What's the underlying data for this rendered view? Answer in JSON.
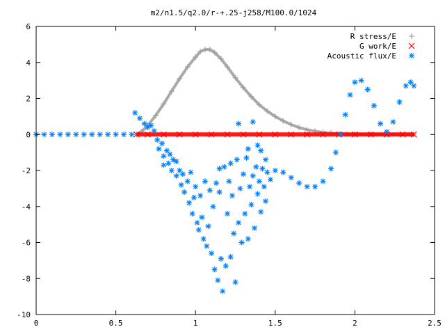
{
  "chart_data": {
    "type": "scatter",
    "title": "m2/n1.5/q2.0/r-+.25-j258/M100.0/1024",
    "xlabel": "",
    "ylabel": "",
    "xlim": [
      0,
      2.5
    ],
    "ylim": [
      -10,
      6
    ],
    "grid": false,
    "legend_position": "top-right",
    "x_ticks": [
      0,
      0.5,
      1,
      1.5,
      2,
      2.5
    ],
    "x_tick_labels": [
      "0",
      "0.5",
      "1",
      "1.5",
      "2",
      "2.5"
    ],
    "y_ticks": [
      -10,
      -8,
      -6,
      -4,
      -2,
      0,
      2,
      4,
      6
    ],
    "y_tick_labels": [
      "-10",
      "-8",
      "-6",
      "-4",
      "-2",
      "0",
      "2",
      "4",
      "6"
    ],
    "series": [
      {
        "name": "R stress/E",
        "marker": "+",
        "color": "#a0a0a0",
        "points": [
          [
            0.63,
            0.0
          ],
          [
            0.66,
            0.15
          ],
          [
            0.7,
            0.5
          ],
          [
            0.75,
            1.05
          ],
          [
            0.8,
            1.7
          ],
          [
            0.85,
            2.4
          ],
          [
            0.9,
            3.1
          ],
          [
            0.95,
            3.75
          ],
          [
            1.0,
            4.3
          ],
          [
            1.03,
            4.6
          ],
          [
            1.06,
            4.72
          ],
          [
            1.09,
            4.72
          ],
          [
            1.12,
            4.55
          ],
          [
            1.16,
            4.2
          ],
          [
            1.2,
            3.75
          ],
          [
            1.25,
            3.15
          ],
          [
            1.3,
            2.6
          ],
          [
            1.35,
            2.1
          ],
          [
            1.4,
            1.65
          ],
          [
            1.45,
            1.3
          ],
          [
            1.5,
            1.0
          ],
          [
            1.55,
            0.75
          ],
          [
            1.6,
            0.55
          ],
          [
            1.65,
            0.38
          ],
          [
            1.7,
            0.27
          ],
          [
            1.75,
            0.18
          ],
          [
            1.8,
            0.12
          ],
          [
            1.85,
            0.08
          ],
          [
            1.9,
            0.05
          ],
          [
            1.95,
            0.03
          ],
          [
            2.0,
            0.02
          ],
          [
            2.1,
            0.01
          ],
          [
            2.2,
            0.0
          ],
          [
            2.37,
            0.0
          ]
        ]
      },
      {
        "name": "G work/E",
        "marker": "x",
        "color": "#ff0000",
        "points": [
          [
            0.63,
            0.0
          ],
          [
            0.7,
            0.0
          ],
          [
            0.8,
            0.0
          ],
          [
            0.9,
            0.0
          ],
          [
            1.0,
            0.0
          ],
          [
            1.1,
            0.0
          ],
          [
            1.2,
            0.0
          ],
          [
            1.3,
            0.0
          ],
          [
            1.4,
            0.0
          ],
          [
            1.5,
            0.0
          ],
          [
            1.6,
            0.0
          ],
          [
            1.7,
            0.0
          ],
          [
            1.8,
            0.0
          ],
          [
            1.9,
            0.0
          ],
          [
            2.0,
            0.0
          ],
          [
            2.1,
            0.0
          ],
          [
            2.2,
            0.0
          ],
          [
            2.3,
            0.0
          ],
          [
            2.37,
            0.0
          ]
        ]
      },
      {
        "name": "Acoustic flux/E",
        "marker": "*",
        "color": "#0080ff",
        "points": [
          [
            0.0,
            0.0
          ],
          [
            0.05,
            0.0
          ],
          [
            0.1,
            0.0
          ],
          [
            0.15,
            0.0
          ],
          [
            0.2,
            0.0
          ],
          [
            0.25,
            0.0
          ],
          [
            0.3,
            0.0
          ],
          [
            0.35,
            0.0
          ],
          [
            0.4,
            0.0
          ],
          [
            0.45,
            0.0
          ],
          [
            0.5,
            0.0
          ],
          [
            0.55,
            0.0
          ],
          [
            0.6,
            0.0
          ],
          [
            0.62,
            1.2
          ],
          [
            0.65,
            0.9
          ],
          [
            0.68,
            0.6
          ],
          [
            0.7,
            0.4
          ],
          [
            0.72,
            0.5
          ],
          [
            0.74,
            0.2
          ],
          [
            0.76,
            -0.3
          ],
          [
            0.77,
            -0.8
          ],
          [
            0.79,
            -0.5
          ],
          [
            0.8,
            -1.2
          ],
          [
            0.82,
            -0.9
          ],
          [
            0.83,
            -1.6
          ],
          [
            0.85,
            -2.0
          ],
          [
            0.86,
            -1.4
          ],
          [
            0.88,
            -2.3
          ],
          [
            0.9,
            -2.0
          ],
          [
            0.91,
            -2.8
          ],
          [
            0.93,
            -3.2
          ],
          [
            0.95,
            -2.6
          ],
          [
            0.96,
            -3.8
          ],
          [
            0.98,
            -4.4
          ],
          [
            0.99,
            -3.5
          ],
          [
            1.01,
            -4.9
          ],
          [
            1.02,
            -5.3
          ],
          [
            1.04,
            -4.6
          ],
          [
            1.05,
            -5.8
          ],
          [
            1.07,
            -6.2
          ],
          [
            1.08,
            -5.1
          ],
          [
            1.1,
            -6.6
          ],
          [
            1.11,
            -4.0
          ],
          [
            1.12,
            -7.5
          ],
          [
            1.13,
            -2.7
          ],
          [
            1.14,
            -8.1
          ],
          [
            1.15,
            -3.2
          ],
          [
            1.16,
            -6.9
          ],
          [
            1.17,
            -8.7
          ],
          [
            1.18,
            -1.8
          ],
          [
            1.19,
            -7.3
          ],
          [
            1.2,
            -4.4
          ],
          [
            1.21,
            -2.6
          ],
          [
            1.22,
            -6.8
          ],
          [
            1.23,
            -3.4
          ],
          [
            1.24,
            -5.5
          ],
          [
            1.25,
            -8.2
          ],
          [
            1.26,
            -1.4
          ],
          [
            1.27,
            -4.9
          ],
          [
            1.28,
            -3.0
          ],
          [
            1.29,
            -6.0
          ],
          [
            1.3,
            -2.2
          ],
          [
            1.31,
            -4.4
          ],
          [
            1.32,
            -1.3
          ],
          [
            1.33,
            -5.8
          ],
          [
            1.34,
            -2.9
          ],
          [
            1.35,
            -3.9
          ],
          [
            1.36,
            -2.3
          ],
          [
            1.37,
            -5.2
          ],
          [
            1.38,
            -1.8
          ],
          [
            1.39,
            -3.3
          ],
          [
            1.4,
            -2.6
          ],
          [
            1.41,
            -4.3
          ],
          [
            1.42,
            -1.9
          ],
          [
            1.43,
            -2.9
          ],
          [
            1.44,
            -3.7
          ],
          [
            1.45,
            -2.1
          ],
          [
            1.47,
            -2.5
          ],
          [
            0.8,
            -1.7
          ],
          [
            0.84,
            -1.1
          ],
          [
            0.88,
            -1.5
          ],
          [
            0.92,
            -2.2
          ],
          [
            0.97,
            -2.1
          ],
          [
            1.0,
            -2.9
          ],
          [
            1.03,
            -3.4
          ],
          [
            1.06,
            -2.6
          ],
          [
            1.09,
            -3.1
          ],
          [
            1.15,
            -1.9
          ],
          [
            1.22,
            -1.6
          ],
          [
            1.27,
            0.6
          ],
          [
            1.33,
            -0.8
          ],
          [
            1.36,
            0.7
          ],
          [
            1.39,
            -0.6
          ],
          [
            1.41,
            -0.9
          ],
          [
            1.44,
            -1.4
          ],
          [
            1.5,
            -2.0
          ],
          [
            1.55,
            -2.1
          ],
          [
            1.6,
            -2.4
          ],
          [
            1.65,
            -2.7
          ],
          [
            1.7,
            -2.9
          ],
          [
            1.75,
            -2.9
          ],
          [
            1.8,
            -2.6
          ],
          [
            1.85,
            -1.9
          ],
          [
            1.88,
            -1.0
          ],
          [
            1.91,
            0.0
          ],
          [
            1.94,
            1.1
          ],
          [
            1.97,
            2.2
          ],
          [
            2.0,
            2.9
          ],
          [
            2.04,
            3.0
          ],
          [
            2.08,
            2.5
          ],
          [
            2.12,
            1.6
          ],
          [
            2.16,
            0.6
          ],
          [
            2.2,
            0.15
          ],
          [
            2.24,
            0.7
          ],
          [
            2.28,
            1.8
          ],
          [
            2.32,
            2.7
          ],
          [
            2.35,
            2.9
          ],
          [
            2.37,
            2.7
          ]
        ]
      }
    ]
  }
}
